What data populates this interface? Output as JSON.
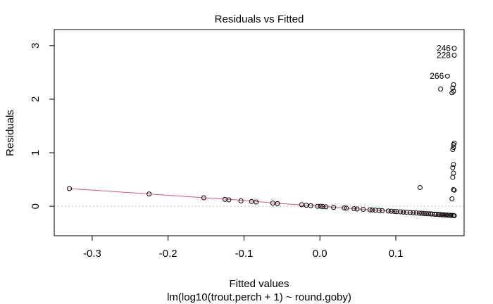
{
  "chart_data": {
    "type": "scatter",
    "title": "Residuals vs Fitted",
    "xlabel": "Fitted values",
    "ylabel": "Residuals",
    "subtitle": "lm(log10(trout.perch + 1) ~ round.goby)",
    "xlim": [
      -0.35,
      0.19
    ],
    "ylim": [
      -0.55,
      3.3
    ],
    "x_ticks": [
      -0.3,
      -0.2,
      -0.1,
      0.0,
      0.1
    ],
    "x_tick_labels": [
      "-0.3",
      "-0.2",
      "-0.1",
      "0.0",
      "0.1"
    ],
    "y_ticks": [
      0,
      1,
      2,
      3
    ],
    "y_tick_labels": [
      "0",
      "1",
      "2",
      "3"
    ],
    "zero_line": {
      "y": 0,
      "style": "dotted",
      "color": "#bbbbbb"
    },
    "smoother": {
      "color": "#df536b",
      "x": [
        -0.33,
        -0.225,
        -0.153,
        -0.1,
        -0.06,
        0.0,
        0.05,
        0.1,
        0.13,
        0.15,
        0.165,
        0.175
      ],
      "y": [
        0.33,
        0.23,
        0.16,
        0.11,
        0.06,
        0.0,
        -0.05,
        -0.1,
        -0.13,
        -0.15,
        -0.165,
        -0.175
      ]
    },
    "points": [
      {
        "x": -0.33,
        "y": 0.33
      },
      {
        "x": -0.225,
        "y": 0.23
      },
      {
        "x": -0.153,
        "y": 0.16
      },
      {
        "x": -0.125,
        "y": 0.13
      },
      {
        "x": -0.12,
        "y": 0.12
      },
      {
        "x": -0.104,
        "y": 0.1
      },
      {
        "x": -0.09,
        "y": 0.09
      },
      {
        "x": -0.084,
        "y": 0.08
      },
      {
        "x": -0.062,
        "y": 0.06
      },
      {
        "x": -0.056,
        "y": 0.05
      },
      {
        "x": -0.024,
        "y": 0.03
      },
      {
        "x": -0.018,
        "y": 0.02
      },
      {
        "x": -0.012,
        "y": 0.01
      },
      {
        "x": -0.003,
        "y": 0.0
      },
      {
        "x": 0.001,
        "y": 0.0
      },
      {
        "x": 0.004,
        "y": -0.005
      },
      {
        "x": 0.008,
        "y": -0.01
      },
      {
        "x": 0.018,
        "y": -0.02
      },
      {
        "x": 0.032,
        "y": -0.03
      },
      {
        "x": 0.035,
        "y": -0.035
      },
      {
        "x": 0.045,
        "y": -0.045
      },
      {
        "x": 0.049,
        "y": -0.05
      },
      {
        "x": 0.057,
        "y": -0.057
      },
      {
        "x": 0.066,
        "y": -0.065
      },
      {
        "x": 0.069,
        "y": -0.068
      },
      {
        "x": 0.073,
        "y": -0.072
      },
      {
        "x": 0.078,
        "y": -0.077
      },
      {
        "x": 0.082,
        "y": -0.08
      },
      {
        "x": 0.09,
        "y": -0.088
      },
      {
        "x": 0.094,
        "y": -0.092
      },
      {
        "x": 0.098,
        "y": -0.096
      },
      {
        "x": 0.101,
        "y": -0.1
      },
      {
        "x": 0.106,
        "y": -0.104
      },
      {
        "x": 0.11,
        "y": -0.108
      },
      {
        "x": 0.114,
        "y": -0.112
      },
      {
        "x": 0.119,
        "y": -0.116
      },
      {
        "x": 0.123,
        "y": -0.12
      },
      {
        "x": 0.127,
        "y": -0.124
      },
      {
        "x": 0.131,
        "y": -0.128
      },
      {
        "x": 0.134,
        "y": -0.131
      },
      {
        "x": 0.137,
        "y": -0.134
      },
      {
        "x": 0.14,
        "y": -0.137
      },
      {
        "x": 0.143,
        "y": -0.14
      },
      {
        "x": 0.146,
        "y": -0.143
      },
      {
        "x": 0.148,
        "y": -0.145
      },
      {
        "x": 0.151,
        "y": -0.148
      },
      {
        "x": 0.153,
        "y": -0.15
      },
      {
        "x": 0.156,
        "y": -0.153
      },
      {
        "x": 0.158,
        "y": -0.155
      },
      {
        "x": 0.16,
        "y": -0.157
      },
      {
        "x": 0.162,
        "y": -0.159
      },
      {
        "x": 0.164,
        "y": -0.161
      },
      {
        "x": 0.166,
        "y": -0.163
      },
      {
        "x": 0.168,
        "y": -0.165
      },
      {
        "x": 0.17,
        "y": -0.167
      },
      {
        "x": 0.172,
        "y": -0.169
      },
      {
        "x": 0.174,
        "y": -0.171
      },
      {
        "x": 0.176,
        "y": -0.173
      },
      {
        "x": 0.177,
        "y": -0.175
      },
      {
        "x": 0.132,
        "y": 0.35
      },
      {
        "x": 0.174,
        "y": 0.14
      },
      {
        "x": 0.176,
        "y": 0.31
      },
      {
        "x": 0.177,
        "y": 0.3
      },
      {
        "x": 0.175,
        "y": 0.54
      },
      {
        "x": 0.176,
        "y": 0.62
      },
      {
        "x": 0.175,
        "y": 0.72
      },
      {
        "x": 0.176,
        "y": 0.78
      },
      {
        "x": 0.175,
        "y": 1.06
      },
      {
        "x": 0.176,
        "y": 1.1
      },
      {
        "x": 0.176,
        "y": 1.15
      },
      {
        "x": 0.177,
        "y": 1.18
      },
      {
        "x": 0.159,
        "y": 2.19
      },
      {
        "x": 0.174,
        "y": 2.12
      },
      {
        "x": 0.176,
        "y": 2.15
      },
      {
        "x": 0.175,
        "y": 2.21
      },
      {
        "x": 0.176,
        "y": 2.27
      },
      {
        "x": 0.168,
        "y": 2.43,
        "label": "266"
      },
      {
        "x": 0.177,
        "y": 2.82,
        "label": "228"
      },
      {
        "x": 0.177,
        "y": 2.95,
        "label": "246"
      }
    ]
  }
}
